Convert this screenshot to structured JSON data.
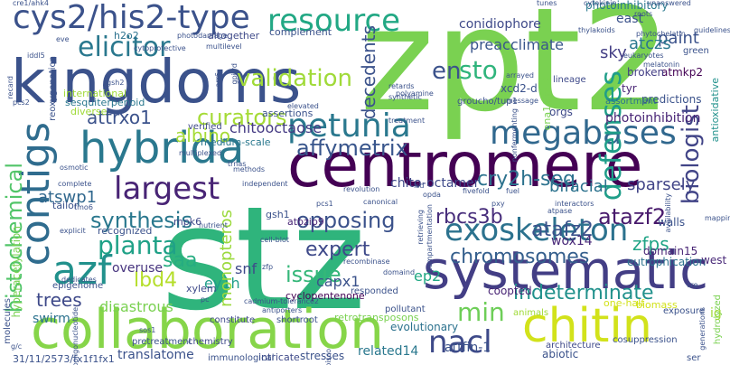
{
  "words": [
    {
      "id": "zpt2",
      "text": "zpt2",
      "color": "#7ad151"
    },
    {
      "id": "stz",
      "text": "stz",
      "color": "#2fb47c"
    },
    {
      "id": "centromere",
      "text": "centromere",
      "color": "#440154"
    },
    {
      "id": "kingdoms",
      "text": "kingdoms",
      "color": "#3b528b"
    },
    {
      "id": "systematic",
      "text": "systematic",
      "color": "#433e85"
    },
    {
      "id": "collaboration",
      "text": "collaboration",
      "color": "#86d549"
    },
    {
      "id": "chitin",
      "text": "chitin",
      "color": "#d2e21b"
    },
    {
      "id": "hybrida",
      "text": "hybrida",
      "color": "#2a788e"
    },
    {
      "id": "cys2-his2-type",
      "text": "cys2/his2-type",
      "color": "#3b528b"
    },
    {
      "id": "exoskeleton",
      "text": "exoskeleton",
      "color": "#2c728e"
    },
    {
      "id": "megabases",
      "text": "megabases",
      "color": "#31688e"
    },
    {
      "id": "petunia",
      "text": "petunia",
      "color": "#2a788e"
    },
    {
      "id": "contigs",
      "text": "contigs",
      "color": "#2f6c8e"
    },
    {
      "id": "largest",
      "text": "largest",
      "color": "#482475"
    },
    {
      "id": "resource",
      "text": "resource",
      "color": "#22a884"
    },
    {
      "id": "validation",
      "text": "validation",
      "color": "#a0da39"
    },
    {
      "id": "elicitor",
      "text": "elicitor",
      "color": "#2a788e"
    },
    {
      "id": "azf",
      "text": "azf",
      "color": "#21918c"
    },
    {
      "id": "nacl",
      "text": "nacl",
      "color": "#3e4a89"
    },
    {
      "id": "indeterminate",
      "text": "indeterminate",
      "color": "#21918c"
    },
    {
      "id": "affymetrix",
      "text": "affymetrix",
      "color": "#39568c"
    },
    {
      "id": "defenses",
      "text": "defenses",
      "color": "#1f9e89"
    },
    {
      "id": "biologist",
      "text": "biologist",
      "color": "#414487"
    },
    {
      "id": "curators",
      "text": "curators",
      "color": "#a5db36"
    },
    {
      "id": "synthesis",
      "text": "synthesis",
      "color": "#2a788e"
    },
    {
      "id": "opposing",
      "text": "opposing",
      "color": "#3b528b"
    },
    {
      "id": "planta",
      "text": "planta",
      "color": "#1fa187"
    },
    {
      "id": "chromosomes",
      "text": "chromosomes",
      "color": "#355f8d"
    },
    {
      "id": "rbcs3b",
      "text": "rbcs3b",
      "color": "#472d7b"
    },
    {
      "id": "atazf2",
      "text": "atazf2",
      "color": "#481a6c"
    },
    {
      "id": "cry2h-seq",
      "text": "cry2h-seq",
      "color": "#2c728e"
    },
    {
      "id": "expert",
      "text": "expert",
      "color": "#3e4989"
    },
    {
      "id": "issue",
      "text": "issue",
      "color": "#35b779"
    },
    {
      "id": "min",
      "text": "min",
      "color": "#6ece58"
    },
    {
      "id": "histochemical",
      "text": "histochemical",
      "color": "#52c569"
    },
    {
      "id": "en",
      "text": "en",
      "color": "#3b528b"
    },
    {
      "id": "sto",
      "text": "sto",
      "color": "#2fb47c"
    },
    {
      "id": "atafz2",
      "text": "atafz2",
      "color": "#3b528b"
    },
    {
      "id": "trees",
      "text": "trees",
      "color": "#3e4989"
    },
    {
      "id": "saa",
      "text": "saa",
      "color": "#26ad81"
    },
    {
      "id": "lbd4",
      "text": "lbd4",
      "color": "#b5de2b"
    },
    {
      "id": "albino",
      "text": "albino",
      "color": "#a5db36"
    },
    {
      "id": "attrxo1",
      "text": "attrxo1",
      "color": "#3b528b"
    },
    {
      "id": "atswp1",
      "text": "atswp1",
      "color": "#31688e"
    },
    {
      "id": "chitooctaose",
      "text": "chitooctaose",
      "color": "#443a83"
    },
    {
      "id": "chito-octamer",
      "text": "chito-octamer",
      "color": "#3e4989"
    },
    {
      "id": "decedents",
      "text": "decedents",
      "color": "#3b528b"
    },
    {
      "id": "preacclimate",
      "text": "preacclimate",
      "color": "#39568c"
    },
    {
      "id": "conidiophore",
      "text": "conidiophore",
      "color": "#3e4989"
    },
    {
      "id": "paint",
      "text": "paint",
      "color": "#3b528b"
    },
    {
      "id": "sky",
      "text": "sky",
      "color": "#433e85"
    },
    {
      "id": "atczs",
      "text": "atczs",
      "color": "#2a788e"
    },
    {
      "id": "bifacial",
      "text": "bifacial",
      "color": "#2c728e"
    },
    {
      "id": "sparsely",
      "text": "sparsely",
      "color": "#414487"
    },
    {
      "id": "wox14",
      "text": "wox14",
      "color": "#482878"
    },
    {
      "id": "zfps",
      "text": "zfps",
      "color": "#20a486"
    },
    {
      "id": "ep2",
      "text": "ep2",
      "color": "#22a884"
    },
    {
      "id": "capx1",
      "text": "capx1",
      "color": "#3b528b"
    },
    {
      "id": "snf",
      "text": "snf",
      "color": "#3e4a89"
    },
    {
      "id": "ey1h",
      "text": "ey1h",
      "color": "#1f9e89"
    },
    {
      "id": "overuse",
      "text": "overuse",
      "color": "#46337e"
    },
    {
      "id": "disastrous",
      "text": "disastrous",
      "color": "#7ad151"
    },
    {
      "id": "swirm",
      "text": "swirm",
      "color": "#2c728e"
    },
    {
      "id": "translatome",
      "text": "translatome",
      "color": "#3b528b"
    },
    {
      "id": "retrotransposons",
      "text": "retrotransposons",
      "color": "#7ad151"
    },
    {
      "id": "related14",
      "text": "related14",
      "color": "#2a788e"
    },
    {
      "id": "attfin-1",
      "text": "attfin-1",
      "color": "#3b528b"
    },
    {
      "id": "evolutionary",
      "text": "evolutionary",
      "color": "#2c728e"
    },
    {
      "id": "monopteros",
      "text": "monopteros",
      "color": "#9bd93c"
    },
    {
      "id": "photoinhibition",
      "text": "photoinhibition",
      "color": "#482475"
    },
    {
      "id": "photoinhibitory",
      "text": "photoinhibitory",
      "color": "#2a788e"
    },
    {
      "id": "east",
      "text": "east",
      "color": "#3b528b"
    },
    {
      "id": "atmkp2",
      "text": "atmkp2",
      "color": "#440154"
    },
    {
      "id": "xcd2-d",
      "text": "xcd2-d",
      "color": "#3b528b"
    },
    {
      "id": "orgs",
      "text": "orgs",
      "color": "#3e4989"
    },
    {
      "id": "tyr",
      "text": "tyr",
      "color": "#482475"
    },
    {
      "id": "broken",
      "text": "broken",
      "color": "#433e85"
    },
    {
      "id": "predictions",
      "text": "predictions",
      "color": "#3b528b"
    },
    {
      "id": "antioxidative",
      "text": "antioxidative",
      "color": "#21918c"
    },
    {
      "id": "green",
      "text": "green",
      "color": "#3b528b"
    },
    {
      "id": "lineage",
      "text": "lineage",
      "color": "#3e4989"
    },
    {
      "id": "groucho-tup1",
      "text": "groucho/tup1",
      "color": "#3b528b"
    },
    {
      "id": "assortment",
      "text": "assortment",
      "color": "#2c728e"
    },
    {
      "id": "ena1-pmr2",
      "text": "ena1/pmr2",
      "color": "#7ad151"
    },
    {
      "id": "walls",
      "text": "walls",
      "color": "#3b528b"
    },
    {
      "id": "eutrophication",
      "text": "eutrophication",
      "color": "#2c728e"
    },
    {
      "id": "domain15",
      "text": "domain15",
      "color": "#482475"
    },
    {
      "id": "west",
      "text": "west",
      "color": "#482878"
    },
    {
      "id": "hyperacetylation",
      "text": "hyperacetylation",
      "color": "#7ad151"
    },
    {
      "id": "sesquiterpenoid",
      "text": "sesquiterpenoid",
      "color": "#2a788e"
    },
    {
      "id": "international",
      "text": "international",
      "color": "#a0da39"
    },
    {
      "id": "reoxygenation",
      "text": "reoxygenation",
      "color": "#3b528b"
    },
    {
      "id": "h2o2",
      "text": "h2o2",
      "color": "#2c728e"
    },
    {
      "id": "altogether",
      "text": "altogether",
      "color": "#3e4989"
    },
    {
      "id": "complement",
      "text": "complement",
      "color": "#3b528b"
    },
    {
      "id": "assertions",
      "text": "assertions",
      "color": "#3b528b"
    },
    {
      "id": "medium-scale",
      "text": "medium-scale",
      "color": "#2a788e"
    },
    {
      "id": "verified",
      "text": "verified",
      "color": "#3e4989"
    },
    {
      "id": "tailor",
      "text": "tailor",
      "color": "#3b528b"
    },
    {
      "id": "mpk6",
      "text": "mpk6",
      "color": "#3e4989"
    },
    {
      "id": "gsh1",
      "text": "gsh1",
      "color": "#3b528b"
    },
    {
      "id": "atbzip9",
      "text": "atbzip9",
      "color": "#482475"
    },
    {
      "id": "recognized",
      "text": "recognized",
      "color": "#3b528b"
    },
    {
      "id": "diverse",
      "text": "diverse",
      "color": "#a0da39"
    },
    {
      "id": "xylem",
      "text": "xylem",
      "color": "#3e4989"
    },
    {
      "id": "cyclopentenone",
      "text": "cyclopentenone",
      "color": "#440154"
    },
    {
      "id": "shortroot",
      "text": "shortroot",
      "color": "#3b528b"
    },
    {
      "id": "stresses",
      "text": "stresses",
      "color": "#3b528b"
    },
    {
      "id": "intricate",
      "text": "intricate",
      "color": "#3e4989"
    },
    {
      "id": "immunological",
      "text": "immunological",
      "color": "#3b528b"
    },
    {
      "id": "pretreatment",
      "text": "pretreatment",
      "color": "#3b528b"
    },
    {
      "id": "chemistry",
      "text": "chemistry",
      "color": "#3e4989"
    },
    {
      "id": "epigenome",
      "text": "epigenome",
      "color": "#3b528b"
    },
    {
      "id": "molecules",
      "text": "molecules",
      "color": "#3b528b"
    },
    {
      "id": "constitute",
      "text": "constitute",
      "color": "#3e4989"
    },
    {
      "id": "responded",
      "text": "responded",
      "color": "#3b528b"
    },
    {
      "id": "pollutant",
      "text": "pollutant",
      "color": "#3b528b"
    },
    {
      "id": "coopted",
      "text": "coopted",
      "color": "#482475"
    },
    {
      "id": "animals",
      "text": "animals",
      "color": "#a0da39"
    },
    {
      "id": "one-half",
      "text": "one-half",
      "color": "#d2e21b"
    },
    {
      "id": "biomass",
      "text": "biomass",
      "color": "#d2e21b"
    },
    {
      "id": "exposure",
      "text": "exposure",
      "color": "#3b528b"
    },
    {
      "id": "abiotic",
      "text": "abiotic",
      "color": "#3b528b"
    },
    {
      "id": "architecture",
      "text": "architecture",
      "color": "#3e4989"
    },
    {
      "id": "cosuppression",
      "text": "cosuppression",
      "color": "#3b528b"
    },
    {
      "id": "hydrolyzed",
      "text": "hydrolyzed",
      "color": "#7ad151"
    },
    {
      "id": "ig",
      "text": "ig",
      "color": "#a0da39"
    },
    {
      "id": "ser",
      "text": "ser",
      "color": "#3b528b"
    },
    {
      "id": "date-code",
      "text": "31/11/2573/fx1f1fx1",
      "color": "#3b528b"
    },
    {
      "id": "tunes",
      "text": "tunes",
      "color": "#3b528b"
    },
    {
      "id": "cytokinin",
      "text": "cytokinin",
      "color": "#3b528b"
    },
    {
      "id": "unanswered",
      "text": "unanswered",
      "color": "#3b528b"
    },
    {
      "id": "thylakoids",
      "text": "thylakoids",
      "color": "#3b528b"
    },
    {
      "id": "phytochelatin",
      "text": "phytochelatin",
      "color": "#3b528b"
    },
    {
      "id": "eukaryotes",
      "text": "eukaryotes",
      "color": "#3b528b"
    },
    {
      "id": "melatonin",
      "text": "melatonin",
      "color": "#3b528b"
    },
    {
      "id": "roots",
      "text": "roots",
      "color": "#3b528b"
    },
    {
      "id": "guidelines",
      "text": "guidelines",
      "color": "#3b528b"
    },
    {
      "id": "retards",
      "text": "retards",
      "color": "#3b528b"
    },
    {
      "id": "polyamine",
      "text": "polyamine",
      "color": "#3b528b"
    },
    {
      "id": "arrayed",
      "text": "arrayed",
      "color": "#3b528b"
    },
    {
      "id": "message",
      "text": "message",
      "color": "#3b528b"
    },
    {
      "id": "synthetic",
      "text": "synthetic",
      "color": "#3b528b"
    },
    {
      "id": "photodamage",
      "text": "photodamage",
      "color": "#3b528b"
    },
    {
      "id": "cytoprotective",
      "text": "cytoprotective",
      "color": "#3b528b"
    },
    {
      "id": "multilevel",
      "text": "multilevel",
      "color": "#3b528b"
    },
    {
      "id": "eve",
      "text": "eve",
      "color": "#3b528b"
    },
    {
      "id": "iddl5",
      "text": "iddl5",
      "color": "#3b528b"
    },
    {
      "id": "gsh2",
      "text": "gsh2",
      "color": "#3b528b"
    },
    {
      "id": "cre1-ahk4",
      "text": "cre1/ahk4",
      "color": "#3b528b"
    },
    {
      "id": "pcs2",
      "text": "pcs2",
      "color": "#3b528b"
    },
    {
      "id": "pcs1",
      "text": "pcs1",
      "color": "#3b528b"
    },
    {
      "id": "lsd",
      "text": "lsd",
      "color": "#3b528b"
    },
    {
      "id": "opda",
      "text": "opda",
      "color": "#3b528b"
    },
    {
      "id": "pxy",
      "text": "pxy",
      "color": "#3b528b"
    },
    {
      "id": "atpase",
      "text": "atpase",
      "color": "#3b528b"
    },
    {
      "id": "interactors",
      "text": "interactors",
      "color": "#3b528b"
    },
    {
      "id": "canonical",
      "text": "canonical",
      "color": "#3b528b"
    },
    {
      "id": "fivefold",
      "text": "fivefold",
      "color": "#3b528b"
    },
    {
      "id": "fuel",
      "text": "fuel",
      "color": "#3b528b"
    },
    {
      "id": "revolution",
      "text": "revolution",
      "color": "#3b528b"
    },
    {
      "id": "elevated",
      "text": "elevated",
      "color": "#3b528b"
    },
    {
      "id": "independent",
      "text": "independent",
      "color": "#3b528b"
    },
    {
      "id": "methods",
      "text": "methods",
      "color": "#3b528b"
    },
    {
      "id": "trnas",
      "text": "trnas",
      "color": "#3b528b"
    },
    {
      "id": "nutrient",
      "text": "nutrient",
      "color": "#3b528b"
    },
    {
      "id": "multiplexed",
      "text": "multiplexed",
      "color": "#3b528b"
    },
    {
      "id": "explicit",
      "text": "explicit",
      "color": "#3b528b"
    },
    {
      "id": "dedicates",
      "text": "dedicates",
      "color": "#3b528b"
    },
    {
      "id": "complete",
      "text": "complete",
      "color": "#3b528b"
    },
    {
      "id": "osmotic",
      "text": "osmotic",
      "color": "#3b528b"
    },
    {
      "id": "cell-blot",
      "text": "cell-blot",
      "color": "#3b528b"
    },
    {
      "id": "pc",
      "text": "pc",
      "color": "#3b528b"
    },
    {
      "id": "zfp",
      "text": "zfp",
      "color": "#3b528b"
    },
    {
      "id": "recombinase",
      "text": "recombinase",
      "color": "#3b528b"
    },
    {
      "id": "domaind",
      "text": "domaind",
      "color": "#3b528b"
    },
    {
      "id": "antiporters",
      "text": "antiporters",
      "color": "#3b528b"
    },
    {
      "id": "cadmium-tolerance2",
      "text": "cadmium-tolerance2",
      "color": "#3b528b"
    },
    {
      "id": "treatment",
      "text": "treatment",
      "color": "#3b528b"
    },
    {
      "id": "retrieving",
      "text": "retrieving",
      "color": "#3b528b"
    },
    {
      "id": "compartmentation",
      "text": "compartmentation",
      "color": "#3b528b"
    },
    {
      "id": "nonfermenting",
      "text": "nonfermenting",
      "color": "#3b528b"
    },
    {
      "id": "availability",
      "text": "availability",
      "color": "#3b528b"
    },
    {
      "id": "mapping",
      "text": "mapping",
      "color": "#3b528b"
    },
    {
      "id": "cre",
      "text": "cre",
      "color": "#3b528b"
    },
    {
      "id": "generations",
      "text": "generations",
      "color": "#3b528b"
    },
    {
      "id": "sos1",
      "text": "sos1",
      "color": "#3b528b"
    },
    {
      "id": "g-c",
      "text": "g/c",
      "color": "#3b528b"
    },
    {
      "id": "ooligonucleotide",
      "text": "ooligonucleotide",
      "color": "#3b528b"
    },
    {
      "id": "gpi-rd",
      "text": "gpi-rd",
      "color": "#3b528b"
    },
    {
      "id": "arr6",
      "text": "arr6",
      "color": "#3b528b"
    },
    {
      "id": "rubisco",
      "text": "rubisco",
      "color": "#3b528b"
    },
    {
      "id": "recard",
      "text": "recard",
      "color": "#3b528b"
    },
    {
      "id": "tmo6",
      "text": "tmo6",
      "color": "#3b528b"
    }
  ]
}
